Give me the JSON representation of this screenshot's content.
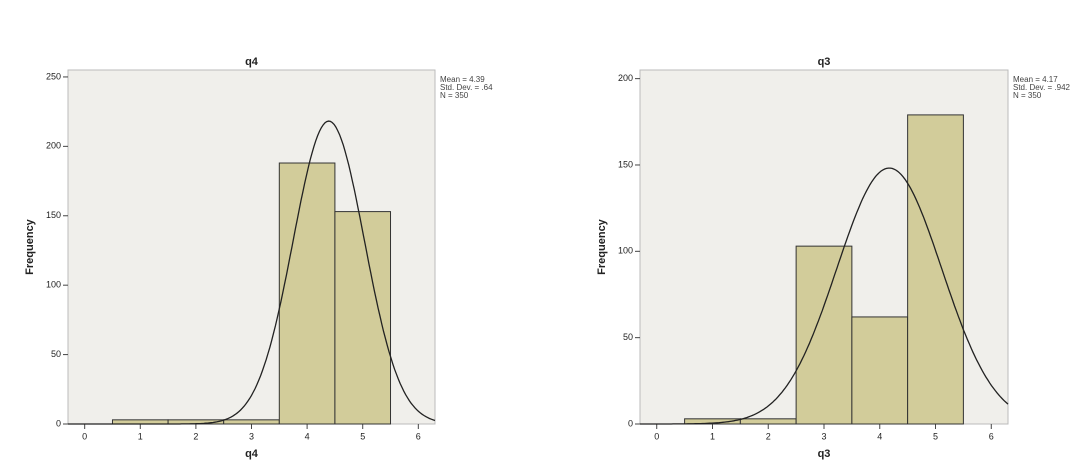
{
  "chart_data": [
    {
      "type": "histogram",
      "title": "q4",
      "xlabel": "q4",
      "ylabel": "Frequency",
      "bins": [
        0.5,
        1.5,
        2.5,
        3.5,
        4.5,
        5.5
      ],
      "counts": [
        3,
        3,
        3,
        188,
        153
      ],
      "color": "#d2cc9a",
      "xlim": [
        -0.3,
        6.3
      ],
      "xticks": [
        0,
        1,
        2,
        3,
        4,
        5,
        6
      ],
      "ylim": [
        0,
        255
      ],
      "yticks": [
        0,
        50,
        100,
        150,
        200,
        250
      ],
      "stats": [
        {
          "value": 4.39,
          "label": "Mean = 4.39"
        },
        {
          "value": 0.64,
          "label": "Std. Dev. = .64"
        },
        {
          "value": 350,
          "label": "N = 350"
        }
      ]
    },
    {
      "type": "histogram",
      "title": "q3",
      "xlabel": "q3",
      "ylabel": "Frequency",
      "bins": [
        0.5,
        1.5,
        2.5,
        3.5,
        4.5,
        5.5
      ],
      "counts": [
        3,
        3,
        103,
        62,
        179
      ],
      "color": "#d2cc9a",
      "xlim": [
        -0.3,
        6.3
      ],
      "xticks": [
        0,
        1,
        2,
        3,
        4,
        5,
        6
      ],
      "ylim": [
        0,
        205
      ],
      "yticks": [
        0,
        50,
        100,
        150,
        200
      ],
      "stats": [
        {
          "value": 4.17,
          "label": "Mean = 4.17"
        },
        {
          "value": 0.942,
          "label": "Std. Dev. = .942"
        },
        {
          "value": 350,
          "label": "N = 350"
        }
      ]
    }
  ]
}
